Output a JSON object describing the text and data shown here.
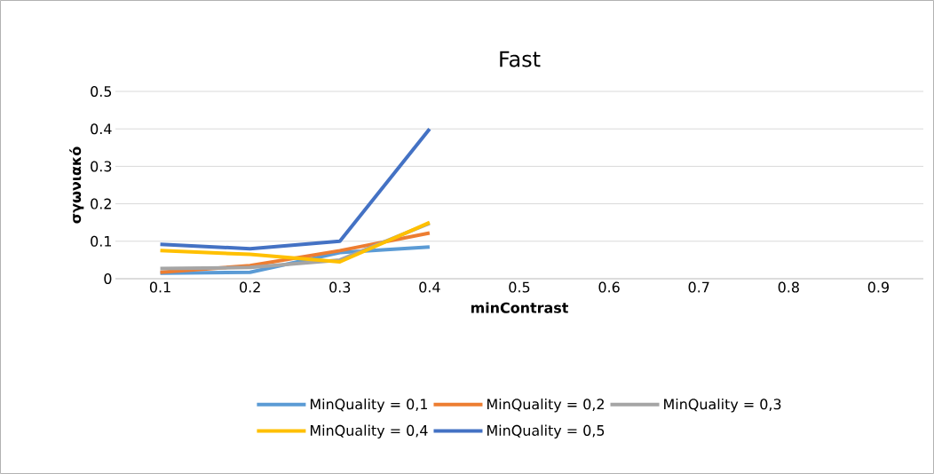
{
  "chart_data": {
    "type": "line",
    "title": "Fast",
    "xlabel": "minContrast",
    "ylabel": "σγωνιακό",
    "categories": [
      "0.1",
      "0.2",
      "0.3",
      "0.4",
      "0.5",
      "0.6",
      "0.7",
      "0.8",
      "0.9"
    ],
    "series": [
      {
        "name": "MinQuality = 0,1",
        "color": "#5b9bd5",
        "values": [
          0.015,
          0.017,
          0.07,
          0.085,
          null,
          null,
          null,
          null,
          null
        ]
      },
      {
        "name": "MinQuality = 0,2",
        "color": "#ed7d31",
        "values": [
          0.017,
          0.035,
          0.075,
          0.122,
          null,
          null,
          null,
          null,
          null
        ]
      },
      {
        "name": "MinQuality = 0,3",
        "color": "#a5a5a5",
        "values": [
          0.027,
          0.03,
          0.05,
          0.148,
          null,
          null,
          null,
          null,
          null
        ]
      },
      {
        "name": "MinQuality = 0,4",
        "color": "#ffc000",
        "values": [
          0.075,
          0.065,
          0.045,
          0.15,
          null,
          null,
          null,
          null,
          null
        ]
      },
      {
        "name": "MinQuality = 0,5",
        "color": "#4472c4",
        "values": [
          0.092,
          0.08,
          0.1,
          0.4,
          null,
          null,
          null,
          null,
          null
        ]
      }
    ],
    "ylim": [
      0,
      0.5
    ],
    "yticks": [
      0,
      0.1,
      0.2,
      0.3,
      0.4,
      0.5
    ],
    "grid": "y",
    "legend": "bottom",
    "marker": "none",
    "line_style": "solid"
  }
}
